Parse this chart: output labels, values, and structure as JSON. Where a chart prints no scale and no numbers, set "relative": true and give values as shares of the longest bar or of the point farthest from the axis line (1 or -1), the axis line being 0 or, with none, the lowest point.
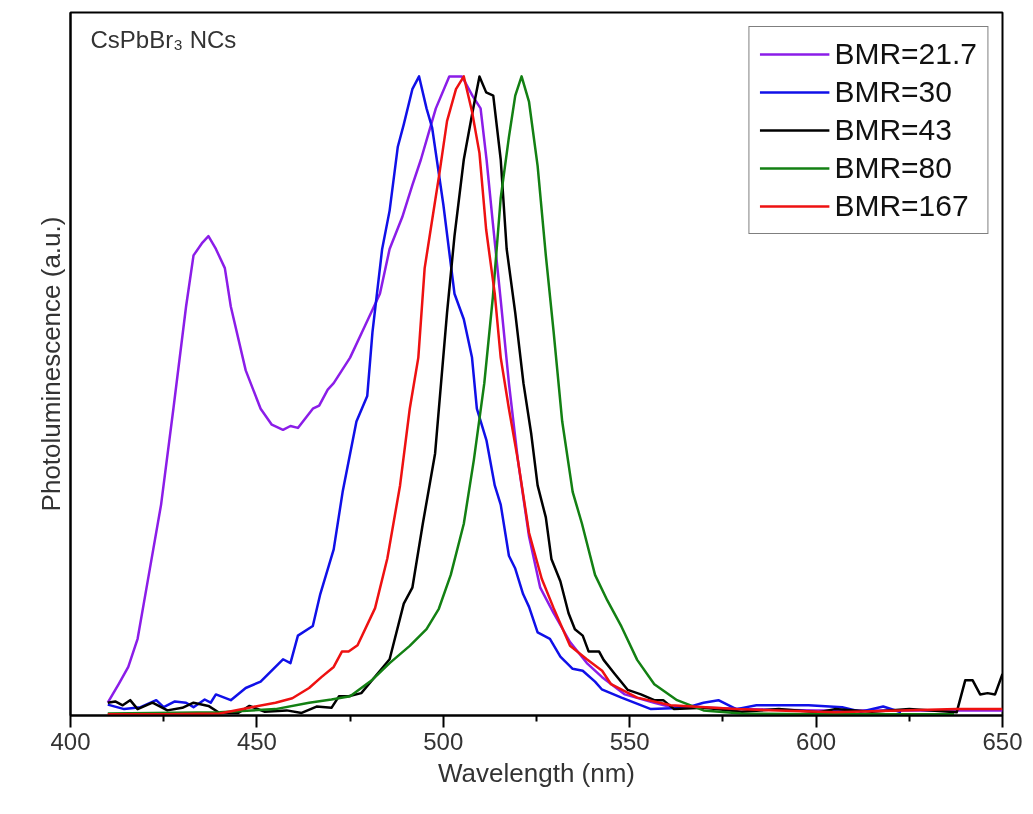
{
  "chart_data": {
    "type": "line",
    "relative": true,
    "xlabel": "Wavelength (nm)",
    "ylabel": "Photoluminescence (a.u.)",
    "annotations": [
      "CsPbBr₃ NCs"
    ],
    "xlim": [
      400,
      650
    ],
    "xticks": [
      400,
      {
        "value": 425,
        "label": null
      },
      450,
      {
        "value": 475,
        "label": null
      },
      500,
      {
        "value": 525,
        "label": null
      },
      550,
      {
        "value": 575,
        "label": null
      },
      600,
      {
        "value": 625,
        "label": null
      },
      650
    ],
    "legend": "top right",
    "grid": false,
    "line_style": "solid",
    "marker": "none",
    "series": [
      {
        "name": "BMR=21.7",
        "color": "#8b1de8",
        "x": [
          410,
          413,
          415.5,
          418,
          421,
          424.3,
          427.6,
          431,
          433,
          435.4,
          437,
          439,
          441.4,
          443,
          447,
          451,
          454,
          457,
          459,
          461,
          465,
          466.7,
          469,
          470.6,
          475,
          479,
          483,
          485.6,
          489,
          491.7,
          494,
          496,
          498,
          501.6,
          505,
          507.8,
          510,
          511.6,
          513.3,
          515.4,
          517.6,
          520,
          523,
          526,
          529.6,
          534,
          538.5,
          542.6,
          548.7,
          556.6,
          560,
          580,
          600,
          620,
          650
        ],
        "values": [
          0.02,
          0.05,
          0.076,
          0.12,
          0.22,
          0.33,
          0.48,
          0.64,
          0.72,
          0.74,
          0.75,
          0.73,
          0.7,
          0.64,
          0.54,
          0.48,
          0.455,
          0.447,
          0.453,
          0.45,
          0.48,
          0.485,
          0.51,
          0.52,
          0.56,
          0.61,
          0.66,
          0.73,
          0.78,
          0.83,
          0.87,
          0.91,
          0.95,
          1.0,
          1.0,
          0.97,
          0.95,
          0.87,
          0.77,
          0.65,
          0.52,
          0.4,
          0.28,
          0.2,
          0.16,
          0.115,
          0.082,
          0.06,
          0.033,
          0.02,
          0.015,
          0.01,
          0.008,
          0.008,
          0.008
        ]
      },
      {
        "name": "BMR=30",
        "color": "#1010e8",
        "x": [
          410,
          414.4,
          418.8,
          423,
          425,
          428,
          431,
          433,
          436,
          437.6,
          439,
          443,
          447,
          451,
          457,
          459,
          461,
          465,
          467,
          470.6,
          473,
          476.7,
          479.6,
          481,
          483.6,
          485.6,
          487.8,
          489.4,
          491.7,
          493.5,
          495.5,
          497,
          500,
          503,
          505.5,
          507.7,
          509,
          511.6,
          513.8,
          515.4,
          517.6,
          519.3,
          521.4,
          523,
          525.3,
          528.6,
          531.4,
          534.7,
          537.4,
          540.7,
          542.5,
          547.8,
          555.7,
          565,
          569.8,
          573.8,
          578.6,
          584,
          598,
          607,
          612,
          618,
          622.8
        ],
        "values": [
          0.017,
          0.01,
          0.013,
          0.024,
          0.013,
          0.022,
          0.02,
          0.013,
          0.025,
          0.02,
          0.033,
          0.024,
          0.043,
          0.053,
          0.088,
          0.082,
          0.125,
          0.14,
          0.19,
          0.26,
          0.35,
          0.46,
          0.5,
          0.6,
          0.73,
          0.79,
          0.89,
          0.925,
          0.98,
          1.0,
          0.95,
          0.92,
          0.8,
          0.66,
          0.62,
          0.56,
          0.48,
          0.43,
          0.36,
          0.33,
          0.25,
          0.23,
          0.19,
          0.17,
          0.13,
          0.12,
          0.092,
          0.073,
          0.07,
          0.053,
          0.041,
          0.028,
          0.01,
          0.012,
          0.02,
          0.024,
          0.01,
          0.016,
          0.016,
          0.013,
          0.006,
          0.014,
          0.005
        ]
      },
      {
        "name": "BMR=43",
        "color": "#000000",
        "x": [
          410,
          412,
          414,
          416,
          418,
          422,
          426,
          430,
          433,
          437,
          440,
          445,
          448,
          452,
          458,
          462,
          466,
          470,
          472,
          474.6,
          478,
          481,
          485.6,
          489.4,
          491.7,
          494.5,
          497.8,
          501,
          503,
          505.5,
          507.7,
          509.7,
          511.5,
          513.4,
          515.4,
          517,
          519.3,
          521.5,
          523.6,
          525.3,
          527.5,
          529,
          531.4,
          533.6,
          535.3,
          537.4,
          539,
          541.8,
          543,
          546,
          549.5,
          553,
          556.6,
          559,
          561.9,
          570,
          580,
          590,
          600.7,
          605,
          615,
          625,
          637.7,
          640,
          642,
          644,
          646,
          648,
          650
        ],
        "values": [
          0.02,
          0.022,
          0.016,
          0.024,
          0.01,
          0.02,
          0.008,
          0.012,
          0.02,
          0.015,
          0.004,
          0.004,
          0.015,
          0.006,
          0.008,
          0.004,
          0.014,
          0.012,
          0.03,
          0.03,
          0.035,
          0.056,
          0.088,
          0.175,
          0.2,
          0.3,
          0.41,
          0.63,
          0.75,
          0.87,
          0.94,
          1.0,
          0.975,
          0.97,
          0.87,
          0.73,
          0.63,
          0.52,
          0.44,
          0.36,
          0.31,
          0.245,
          0.21,
          0.16,
          0.135,
          0.125,
          0.1,
          0.1,
          0.087,
          0.065,
          0.04,
          0.033,
          0.024,
          0.024,
          0.01,
          0.012,
          0.006,
          0.01,
          0.005,
          0.01,
          0.006,
          0.01,
          0.005,
          0.055,
          0.055,
          0.033,
          0.035,
          0.033,
          0.065
        ]
      },
      {
        "name": "BMR=80",
        "color": "#138013",
        "x": [
          410,
          440,
          455,
          464,
          470,
          475,
          481,
          485.6,
          491,
          495.5,
          498.8,
          502,
          505.5,
          508.2,
          511,
          513.3,
          515.4,
          517.6,
          519.3,
          521,
          523,
          525.3,
          527.5,
          529.6,
          531.9,
          534.7,
          537.2,
          540.7,
          544,
          547.8,
          552,
          556.6,
          562.7,
          569.8,
          580,
          600,
          620,
          637
        ],
        "values": [
          0.003,
          0.005,
          0.01,
          0.02,
          0.025,
          0.03,
          0.056,
          0.082,
          0.109,
          0.135,
          0.167,
          0.22,
          0.3,
          0.4,
          0.52,
          0.655,
          0.81,
          0.905,
          0.97,
          1.0,
          0.96,
          0.86,
          0.72,
          0.6,
          0.46,
          0.35,
          0.3,
          0.22,
          0.18,
          0.139,
          0.087,
          0.049,
          0.024,
          0.008,
          0.003,
          0.002,
          0.002,
          0.002
        ]
      },
      {
        "name": "BMR=167",
        "color": "#ee1111",
        "x": [
          410,
          425,
          440,
          448.6,
          455,
          459.5,
          464,
          467.3,
          470.6,
          472.8,
          474.6,
          477,
          481.7,
          485,
          488.4,
          491,
          493.3,
          495,
          496.6,
          498.9,
          501,
          503.4,
          505.5,
          507.7,
          509.7,
          511.5,
          513.8,
          515.4,
          517.6,
          520,
          523,
          526.4,
          529.6,
          534,
          538.5,
          542.6,
          545,
          552,
          561,
          578.6,
          605,
          637.7,
          650
        ],
        "values": [
          0.002,
          0.002,
          0.003,
          0.013,
          0.02,
          0.027,
          0.043,
          0.06,
          0.076,
          0.1,
          0.1,
          0.11,
          0.168,
          0.246,
          0.36,
          0.48,
          0.56,
          0.7,
          0.76,
          0.846,
          0.93,
          0.98,
          1.0,
          0.945,
          0.88,
          0.76,
          0.66,
          0.56,
          0.48,
          0.4,
          0.286,
          0.214,
          0.168,
          0.109,
          0.088,
          0.07,
          0.049,
          0.028,
          0.016,
          0.01,
          0.005,
          0.01,
          0.01
        ]
      }
    ]
  }
}
